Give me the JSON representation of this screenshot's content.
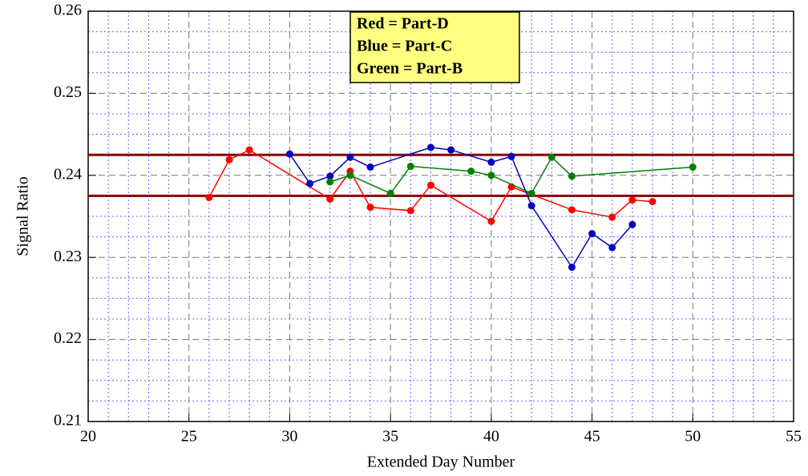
{
  "chart_data": {
    "type": "line",
    "xlabel": "Extended Day Number",
    "ylabel": "Signal Ratio",
    "xlim": [
      20,
      55
    ],
    "ylim": [
      0.21,
      0.26
    ],
    "xticks": [
      20,
      25,
      30,
      35,
      40,
      45,
      50,
      55
    ],
    "yticks": [
      0.21,
      0.22,
      0.23,
      0.24,
      0.25,
      0.26
    ],
    "minor_xticks": [
      21,
      22,
      23,
      24,
      26,
      27,
      28,
      29,
      31,
      32,
      33,
      34,
      36,
      37,
      38,
      39,
      41,
      42,
      43,
      44,
      46,
      47,
      48,
      49,
      51,
      52,
      53,
      54
    ],
    "minor_yticks": [
      0.2125,
      0.215,
      0.2175,
      0.2225,
      0.225,
      0.2275,
      0.2325,
      0.235,
      0.2375,
      0.2425,
      0.245,
      0.2475,
      0.2525,
      0.255,
      0.2575
    ],
    "grid": true,
    "hlines": [
      0.2425,
      0.2375
    ],
    "hline_color": "#8b0000",
    "legend_color": "#ffff80",
    "series": [
      {
        "name": "Red = Part-D",
        "color": "#ff0000",
        "x": [
          26,
          27,
          28,
          32,
          33,
          34,
          36,
          37,
          40,
          41,
          44,
          46,
          47,
          48
        ],
        "values": [
          0.2373,
          0.2419,
          0.2431,
          0.2371,
          0.2405,
          0.2361,
          0.2357,
          0.2388,
          0.2344,
          0.2386,
          0.2358,
          0.2349,
          0.237,
          0.2368
        ]
      },
      {
        "name": "Blue = Part-C",
        "color": "#0000c0",
        "x": [
          30,
          31,
          32,
          33,
          34,
          37,
          38,
          40,
          41,
          42,
          44,
          45,
          46,
          47
        ],
        "values": [
          0.2426,
          0.239,
          0.2399,
          0.2422,
          0.241,
          0.2434,
          0.2431,
          0.2416,
          0.2423,
          0.2363,
          0.2288,
          0.2329,
          0.2312,
          0.234
        ]
      },
      {
        "name": "Green = Part-B",
        "color": "#008000",
        "x": [
          32,
          33,
          35,
          36,
          39,
          40,
          42,
          43,
          44,
          50
        ],
        "values": [
          0.2392,
          0.24,
          0.2378,
          0.2411,
          0.2405,
          0.24,
          0.2378,
          0.2422,
          0.2399,
          0.241
        ]
      }
    ]
  }
}
